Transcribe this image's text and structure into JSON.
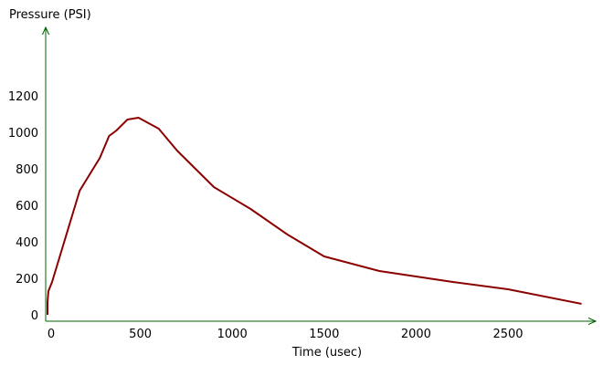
{
  "chart_data": {
    "type": "line",
    "title": "",
    "xlabel": "Time (usec)",
    "ylabel": "Pressure (PSI)",
    "xlim": [
      0,
      2900
    ],
    "ylim": [
      0,
      1200
    ],
    "x_ticks": [
      0,
      500,
      1000,
      1500,
      2000,
      2500
    ],
    "y_ticks": [
      0,
      200,
      400,
      600,
      800,
      1000,
      1200
    ],
    "grid": false,
    "axis_color": "#006400",
    "line_color": "#8b0000",
    "series": [
      {
        "x": [
          -5,
          -5,
          0,
          20,
          170,
          280,
          330,
          370,
          430,
          490,
          600,
          700,
          900,
          1100,
          1300,
          1500,
          1800,
          2200,
          2500,
          2900
        ],
        "y": [
          0,
          70,
          130,
          180,
          680,
          860,
          980,
          1010,
          1070,
          1080,
          1020,
          900,
          700,
          580,
          440,
          320,
          240,
          180,
          140,
          60
        ]
      }
    ]
  }
}
